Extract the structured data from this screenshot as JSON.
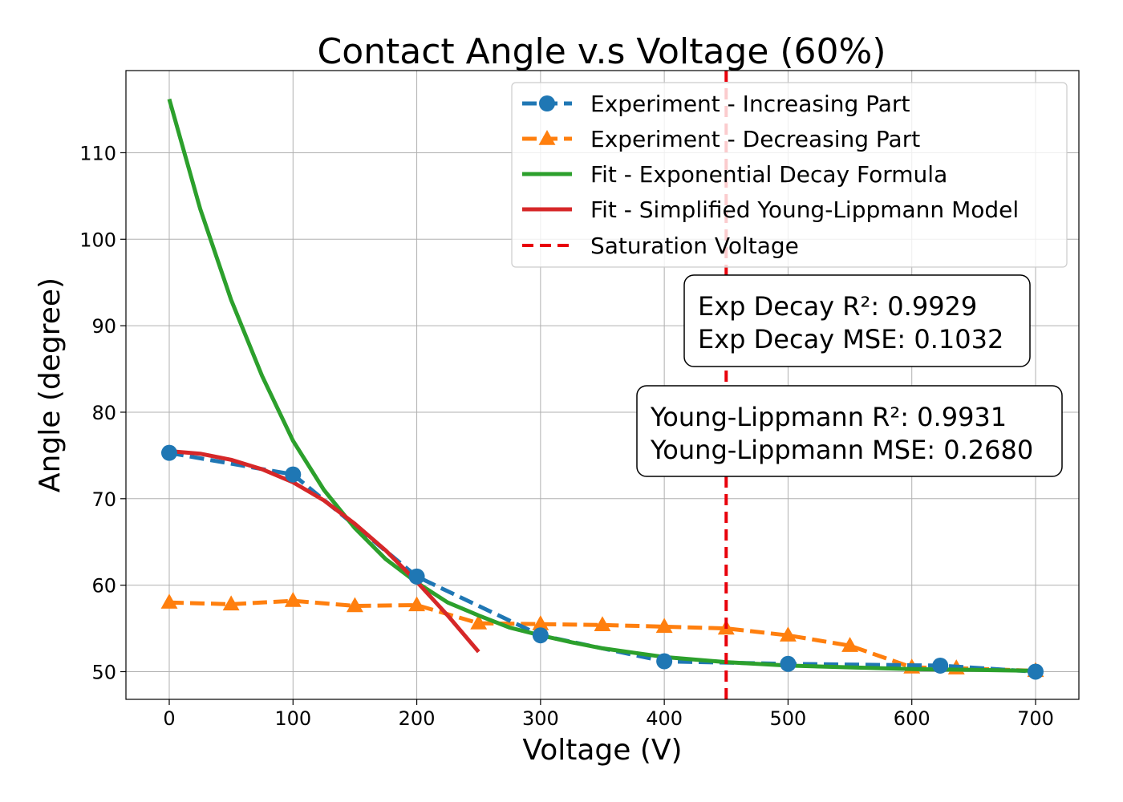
{
  "chart_data": {
    "type": "line",
    "title": "Contact Angle v.s Voltage (60%)",
    "xlabel": "Voltage (V)",
    "ylabel": "Angle (degree)",
    "xlim": [
      -35,
      735
    ],
    "ylim": [
      46.8,
      119.5
    ],
    "xticks": [
      0,
      100,
      200,
      300,
      400,
      500,
      600,
      700
    ],
    "yticks": [
      50,
      60,
      70,
      80,
      90,
      100,
      110
    ],
    "grid": true,
    "legend_position": "top-right",
    "series": [
      {
        "name": "Experiment - Increasing Part",
        "style": "dashed-circle",
        "color": "#1f77b4",
        "x": [
          0,
          100,
          200,
          300,
          400,
          500,
          623,
          700
        ],
        "y": [
          75.3,
          72.8,
          61.0,
          54.2,
          51.2,
          50.9,
          50.7,
          50.0
        ]
      },
      {
        "name": "Experiment - Decreasing Part",
        "style": "dashed-triangle",
        "color": "#ff7f0e",
        "x": [
          0,
          50,
          100,
          150,
          200,
          250,
          300,
          350,
          400,
          450,
          500,
          550,
          600,
          636,
          700
        ],
        "y": [
          58.0,
          57.8,
          58.2,
          57.6,
          57.7,
          55.6,
          55.5,
          55.4,
          55.2,
          55.0,
          54.2,
          53.0,
          50.5,
          50.4,
          50.1
        ]
      },
      {
        "name": "Fit - Exponential Decay Formula",
        "style": "solid",
        "color": "#2ca02c",
        "x": [
          0,
          25,
          50,
          75,
          100,
          125,
          150,
          175,
          200,
          225,
          250,
          275,
          300,
          325,
          350,
          375,
          400,
          450,
          500,
          550,
          600,
          650,
          700
        ],
        "y": [
          116.2,
          103.5,
          93.0,
          84.2,
          76.7,
          71.0,
          66.6,
          63.0,
          60.3,
          58.0,
          56.5,
          55.1,
          54.2,
          53.4,
          52.7,
          52.2,
          51.7,
          51.1,
          50.7,
          50.5,
          50.3,
          50.2,
          50.1
        ]
      },
      {
        "name": "Fit - Simplified Young-Lippmann Model",
        "style": "solid",
        "color": "#d62728",
        "x": [
          0,
          25,
          50,
          75,
          100,
          125,
          150,
          175,
          200,
          225,
          250
        ],
        "y": [
          75.5,
          75.2,
          74.5,
          73.4,
          71.9,
          69.8,
          67.1,
          64.0,
          60.4,
          56.5,
          52.3
        ]
      },
      {
        "name": "Saturation Voltage",
        "style": "vline-dashed",
        "color": "#e8000b",
        "x": [
          450
        ]
      }
    ],
    "annotations": [
      {
        "lines": [
          "Exp Decay R²: 0.9929",
          "Exp Decay MSE: 0.1032"
        ]
      },
      {
        "lines": [
          "Young-Lippmann R²: 0.9931",
          "Young-Lippmann MSE: 0.2680"
        ]
      }
    ]
  }
}
